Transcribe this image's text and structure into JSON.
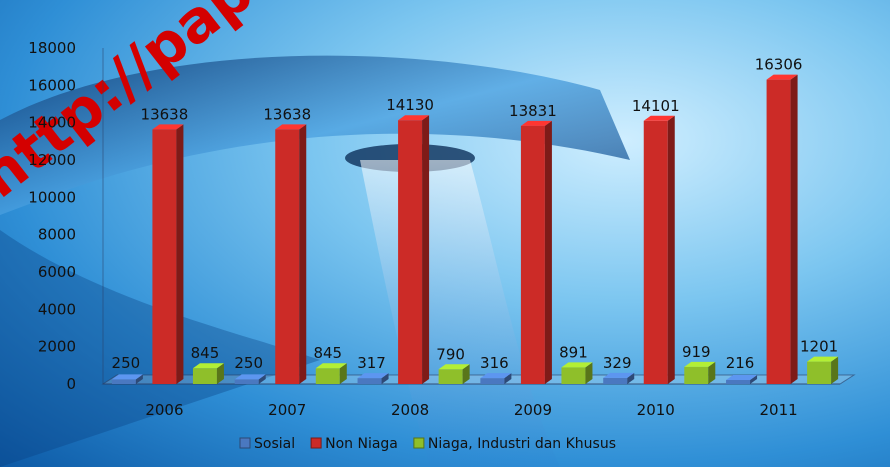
{
  "watermark": "http://papu",
  "chart_data": {
    "type": "bar",
    "title": "",
    "xlabel": "",
    "ylabel": "",
    "categories": [
      "2006",
      "2007",
      "2008",
      "2009",
      "2010",
      "2011"
    ],
    "ylim": [
      0,
      18000
    ],
    "yticks": [
      0,
      2000,
      4000,
      6000,
      8000,
      10000,
      12000,
      14000,
      16000,
      18000
    ],
    "grid": false,
    "legend_position": "bottom",
    "series": [
      {
        "name": "Sosial",
        "color": "#4a78c0",
        "values": [
          250,
          250,
          317,
          316,
          329,
          216
        ]
      },
      {
        "name": "Non Niaga",
        "color": "#cc2b27",
        "values": [
          13638,
          13638,
          14130,
          13831,
          14101,
          16306
        ]
      },
      {
        "name": "Niaga, Industri dan Khusus",
        "color": "#8fbf2a",
        "values": [
          845,
          845,
          790,
          891,
          919,
          1201
        ]
      }
    ]
  }
}
